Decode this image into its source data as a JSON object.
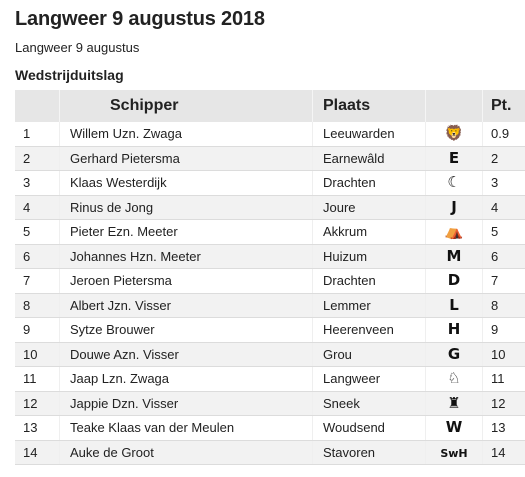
{
  "page": {
    "title": "Langweer 9 augustus 2018",
    "subtitle": "Langweer 9 augustus",
    "section": "Wedstrijduitslag"
  },
  "table": {
    "headers": {
      "nr": "",
      "schipper": "Schipper",
      "plaats": "Plaats",
      "logo": "",
      "pt": "Pt."
    },
    "rows": [
      {
        "nr": "1",
        "schipper": "Willem Uzn. Zwaga",
        "plaats": "Leeuwarden",
        "logo_icon": "lion-icon",
        "logo_glyph": "🦁",
        "pt": "0.9"
      },
      {
        "nr": "2",
        "schipper": "Gerhard Pietersma",
        "plaats": "Earnewâld",
        "logo_icon": "letter-e-icon",
        "logo_glyph": "E",
        "pt": "2"
      },
      {
        "nr": "3",
        "schipper": "Klaas Westerdijk",
        "plaats": "Drachten",
        "logo_icon": "crescent-moon-icon",
        "logo_glyph": "☾",
        "pt": "3"
      },
      {
        "nr": "4",
        "schipper": "Rinus de Jong",
        "plaats": "Joure",
        "logo_icon": "letter-j-icon",
        "logo_glyph": "J",
        "pt": "4"
      },
      {
        "nr": "5",
        "schipper": "Pieter Ezn. Meeter",
        "plaats": "Akkrum",
        "logo_icon": "am-tent-icon",
        "logo_glyph": "⛺",
        "pt": "5"
      },
      {
        "nr": "6",
        "schipper": "Johannes Hzn. Meeter",
        "plaats": "Huizum",
        "logo_icon": "letter-m-icon",
        "logo_glyph": "M",
        "pt": "6"
      },
      {
        "nr": "7",
        "schipper": "Jeroen Pietersma",
        "plaats": "Drachten",
        "logo_icon": "letter-d-icon",
        "logo_glyph": "D",
        "pt": "7"
      },
      {
        "nr": "8",
        "schipper": "Albert Jzn. Visser",
        "plaats": "Lemmer",
        "logo_icon": "letter-l-icon",
        "logo_glyph": "L",
        "pt": "8"
      },
      {
        "nr": "9",
        "schipper": "Sytze Brouwer",
        "plaats": "Heerenveen",
        "logo_icon": "letter-h-icon",
        "logo_glyph": "H",
        "pt": "9"
      },
      {
        "nr": "10",
        "schipper": "Douwe Azn. Visser",
        "plaats": "Grou",
        "logo_icon": "letter-g-icon",
        "logo_glyph": "G",
        "pt": "10"
      },
      {
        "nr": "11",
        "schipper": "Jaap Lzn. Zwaga",
        "plaats": "Langweer",
        "logo_icon": "swan-icon",
        "logo_glyph": "♘",
        "pt": "11"
      },
      {
        "nr": "12",
        "schipper": "Jappie Dzn. Visser",
        "plaats": "Sneek",
        "logo_icon": "waterpoort-icon",
        "logo_glyph": "♜",
        "pt": "12"
      },
      {
        "nr": "13",
        "schipper": "Teake Klaas van der Meulen",
        "plaats": "Woudsend",
        "logo_icon": "letter-w-icon",
        "logo_glyph": "W",
        "pt": "13"
      },
      {
        "nr": "14",
        "schipper": "Auke de Groot",
        "plaats": "Stavoren",
        "logo_icon": "swh-icon",
        "logo_glyph": "SwH",
        "pt": "14"
      }
    ]
  }
}
